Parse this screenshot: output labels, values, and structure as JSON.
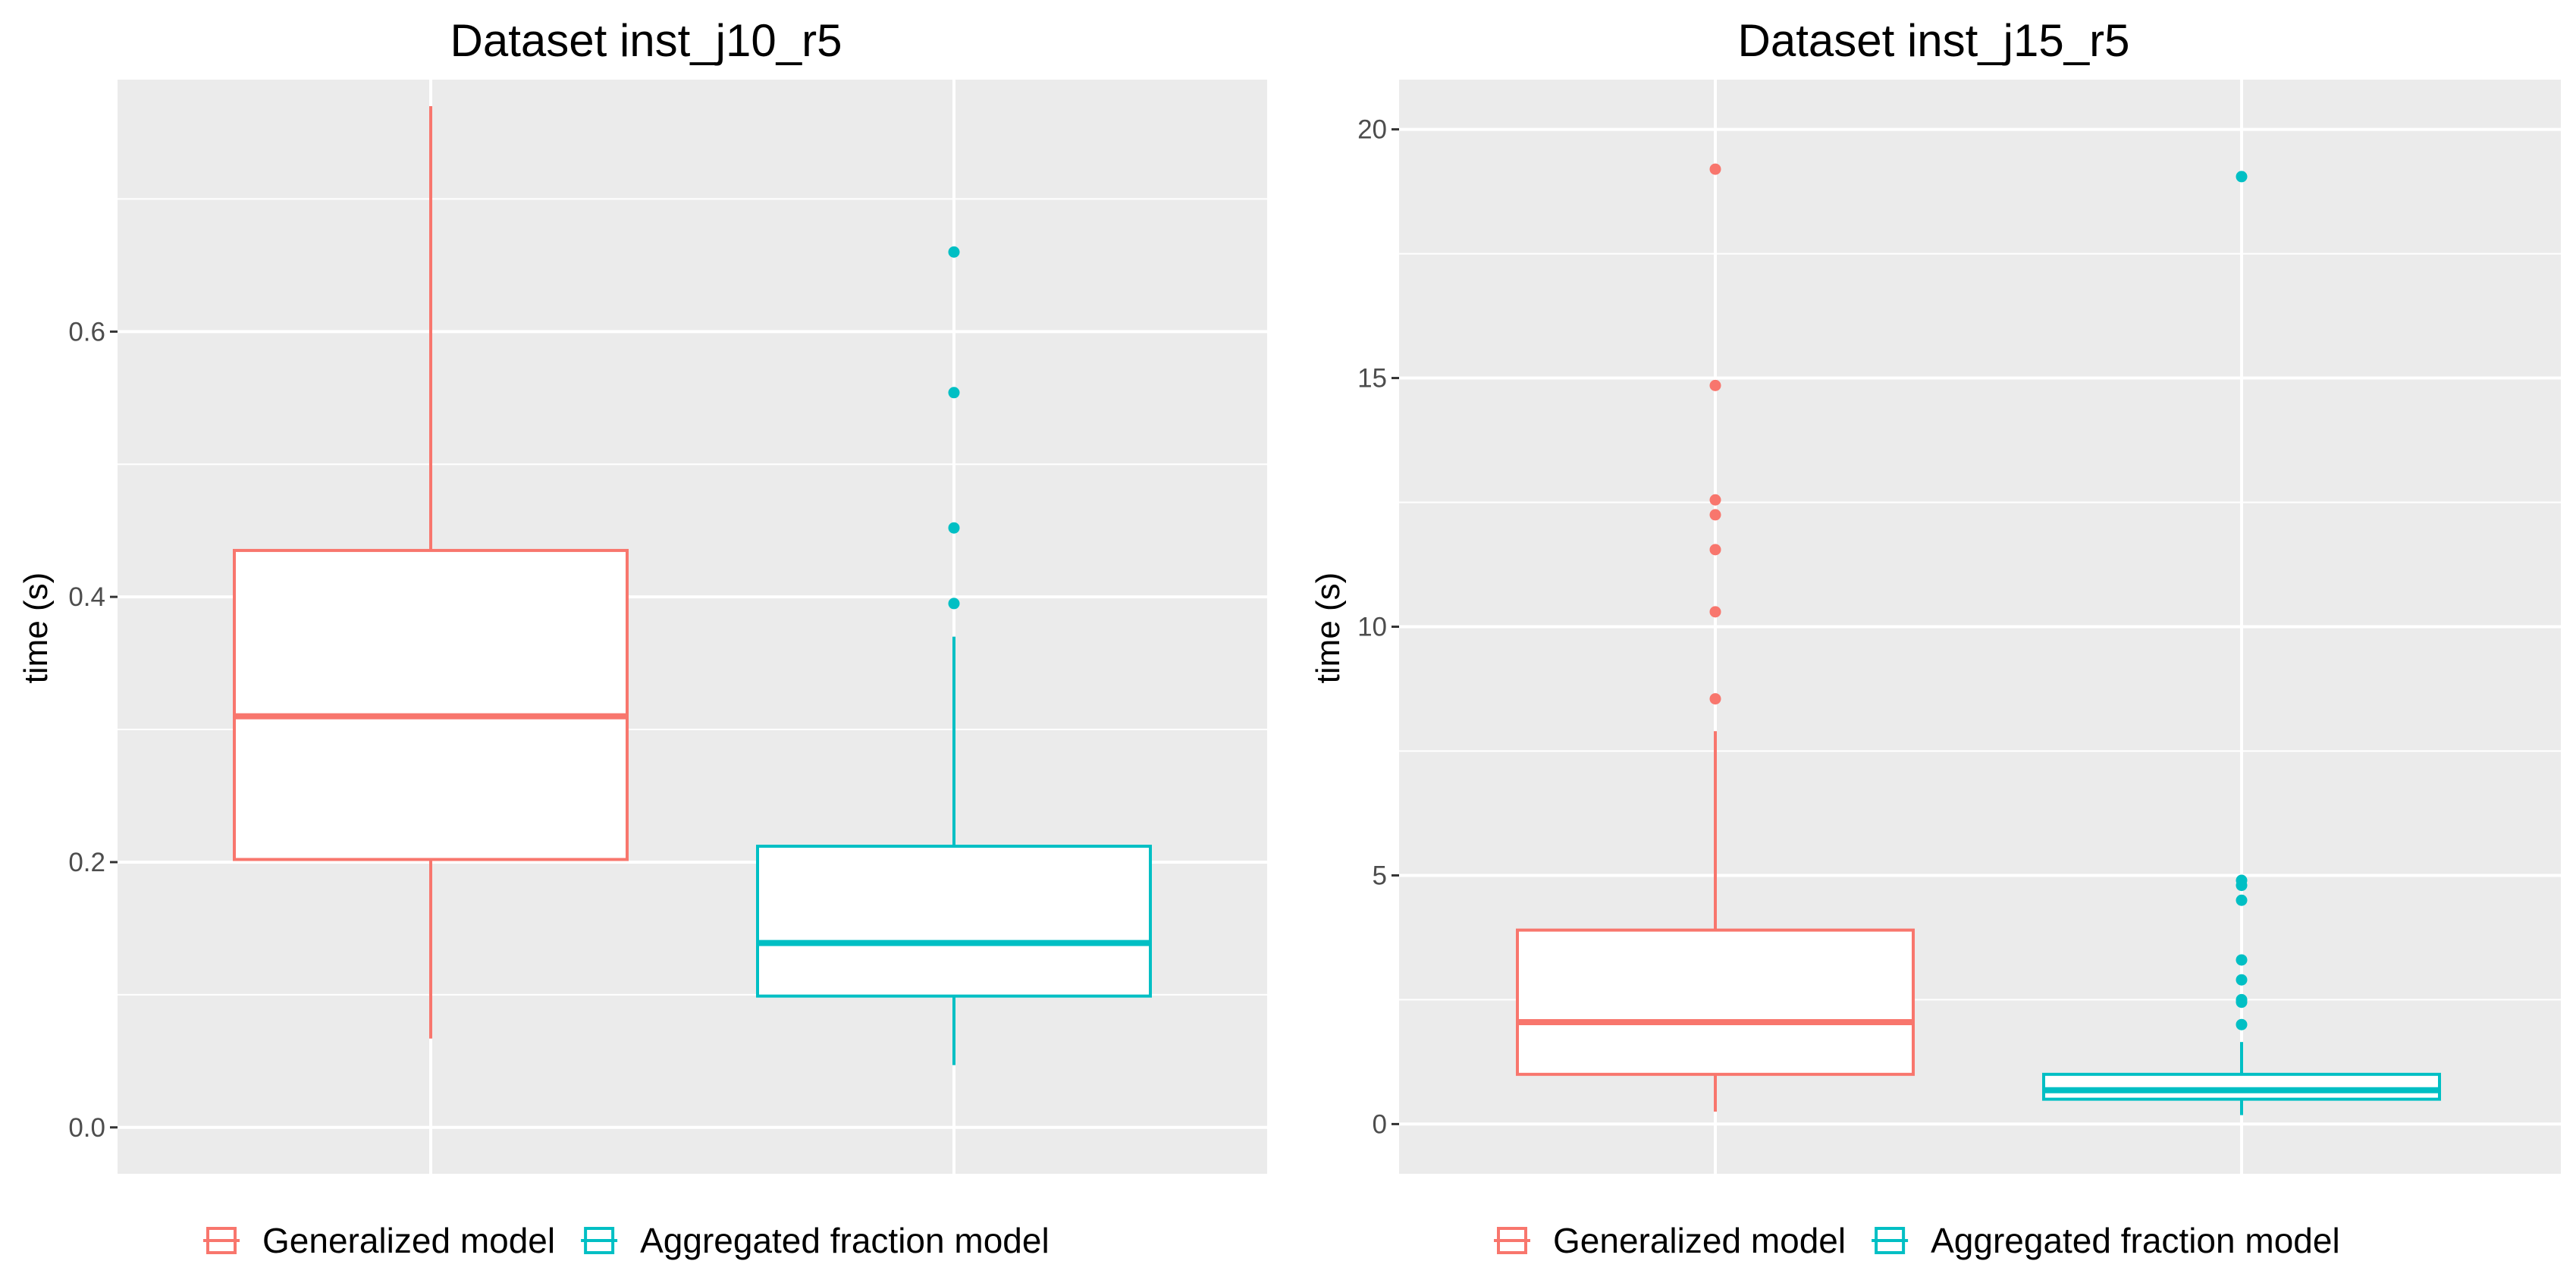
{
  "chart_data": [
    {
      "type": "boxplot",
      "title": "Dataset inst_j10_r5",
      "xlabel": "",
      "ylabel": "time (s)",
      "ylim": [
        -0.035,
        0.79
      ],
      "yticks": [
        0.0,
        0.2,
        0.4,
        0.6
      ],
      "ytick_labels": [
        "0.0",
        "0.2",
        "0.4",
        "0.6"
      ],
      "grid": true,
      "series": [
        {
          "name": "Generalized model",
          "color": "#F8766D",
          "whisker_low": 0.067,
          "q1": 0.202,
          "median": 0.31,
          "q3": 0.435,
          "whisker_high": 0.77,
          "outliers": []
        },
        {
          "name": "Aggregated fraction model",
          "color": "#00BFC4",
          "whisker_low": 0.047,
          "q1": 0.099,
          "median": 0.139,
          "q3": 0.212,
          "whisker_high": 0.37,
          "outliers": [
            0.395,
            0.452,
            0.554,
            0.66
          ]
        }
      ]
    },
    {
      "type": "boxplot",
      "title": "Dataset inst_j15_r5",
      "xlabel": "",
      "ylabel": "time (s)",
      "ylim": [
        -1.0,
        21.0
      ],
      "yticks": [
        0,
        5,
        10,
        15,
        20
      ],
      "ytick_labels": [
        "0",
        "5",
        "10",
        "15",
        "20"
      ],
      "grid": true,
      "series": [
        {
          "name": "Generalized model",
          "color": "#F8766D",
          "whisker_low": 0.25,
          "q1": 1.0,
          "median": 2.05,
          "q3": 3.9,
          "whisker_high": 7.9,
          "outliers": [
            8.55,
            10.3,
            11.55,
            12.25,
            12.55,
            14.85,
            19.2
          ]
        },
        {
          "name": "Aggregated fraction model",
          "color": "#00BFC4",
          "whisker_low": 0.18,
          "q1": 0.5,
          "median": 0.68,
          "q3": 1.0,
          "whisker_high": 1.65,
          "outliers": [
            2.0,
            2.45,
            2.5,
            2.9,
            3.3,
            4.5,
            4.8,
            4.9,
            19.05
          ]
        }
      ]
    }
  ],
  "legend": {
    "items": [
      {
        "label": "Generalized model",
        "color": "#F8766D"
      },
      {
        "label": "Aggregated fraction model",
        "color": "#00BFC4"
      }
    ]
  },
  "colors": {
    "panel_bg": "#EBEBEB",
    "grid": "#FFFFFF",
    "tick": "#4d4d4d"
  }
}
